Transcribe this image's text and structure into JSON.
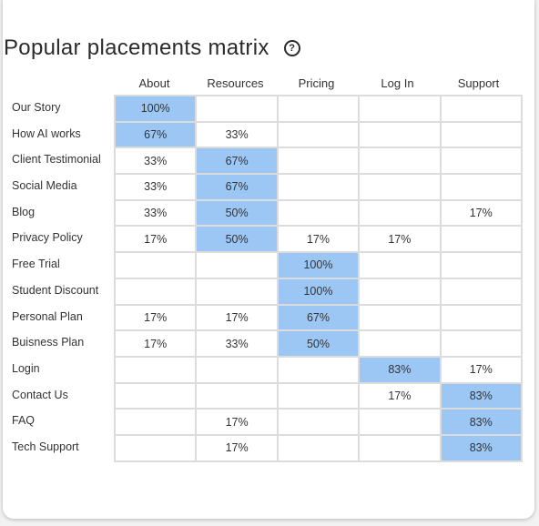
{
  "title": "Popular placements matrix",
  "help_icon": "question-circle-icon",
  "colors": {
    "highlight": "#9cc7f5",
    "grid": "#dcdcdc"
  },
  "chart_data": {
    "type": "heatmap",
    "title": "Popular placements matrix",
    "columns": [
      "About",
      "Resources",
      "Pricing",
      "Log In",
      "Support"
    ],
    "rows": [
      "Our Story",
      "How AI works",
      "Client Testimonial",
      "Social Media",
      "Blog",
      "Privacy Policy",
      "Free Trial",
      "Student Discount",
      "Personal Plan",
      "Buisness Plan",
      "Login",
      "Contact Us",
      "FAQ",
      "Tech Support"
    ],
    "values": [
      [
        100,
        null,
        null,
        null,
        null
      ],
      [
        67,
        33,
        null,
        null,
        null
      ],
      [
        33,
        67,
        null,
        null,
        null
      ],
      [
        33,
        67,
        null,
        null,
        null
      ],
      [
        33,
        50,
        null,
        null,
        17
      ],
      [
        17,
        50,
        17,
        17,
        null
      ],
      [
        null,
        null,
        100,
        null,
        null
      ],
      [
        null,
        null,
        100,
        null,
        null
      ],
      [
        17,
        17,
        67,
        null,
        null
      ],
      [
        17,
        33,
        50,
        null,
        null
      ],
      [
        null,
        null,
        null,
        83,
        17
      ],
      [
        null,
        null,
        null,
        17,
        83
      ],
      [
        null,
        17,
        null,
        null,
        83
      ],
      [
        null,
        17,
        null,
        null,
        83
      ]
    ],
    "highlighted": [
      [
        0,
        0
      ],
      [
        1,
        0
      ],
      [
        2,
        1
      ],
      [
        3,
        1
      ],
      [
        4,
        1
      ],
      [
        5,
        1
      ],
      [
        6,
        2
      ],
      [
        7,
        2
      ],
      [
        8,
        2
      ],
      [
        9,
        2
      ],
      [
        10,
        3
      ],
      [
        11,
        4
      ],
      [
        12,
        4
      ],
      [
        13,
        4
      ]
    ],
    "unit": "%"
  }
}
